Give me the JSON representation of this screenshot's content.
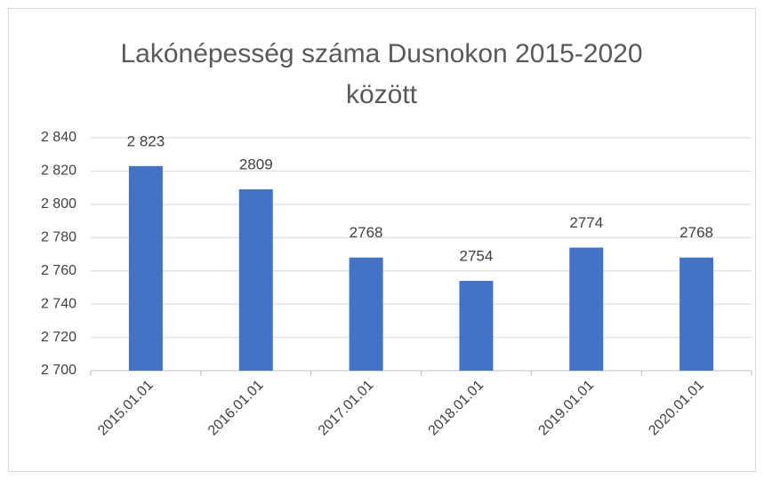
{
  "chart_data": {
    "type": "bar",
    "title": "Lakónépesség száma Dusnokon 2015-2020 között",
    "categories": [
      "2015.01.01",
      "2016.01.01",
      "2017.01.01",
      "2018.01.01",
      "2019.01.01",
      "2020.01.01"
    ],
    "values": [
      2823,
      2809,
      2768,
      2754,
      2774,
      2768
    ],
    "value_labels": [
      "2 823",
      "2809",
      "2768",
      "2754",
      "2774",
      "2768"
    ],
    "color": "#4472c4",
    "ylim": [
      2700,
      2840
    ],
    "yticks": [
      {
        "value": 2700,
        "label": "2 700"
      },
      {
        "value": 2720,
        "label": "2 720"
      },
      {
        "value": 2740,
        "label": "2 740"
      },
      {
        "value": 2760,
        "label": "2 760"
      },
      {
        "value": 2780,
        "label": "2 780"
      },
      {
        "value": 2800,
        "label": "2 800"
      },
      {
        "value": 2820,
        "label": "2 820"
      },
      {
        "value": 2840,
        "label": "2 840"
      }
    ],
    "grid": true
  }
}
